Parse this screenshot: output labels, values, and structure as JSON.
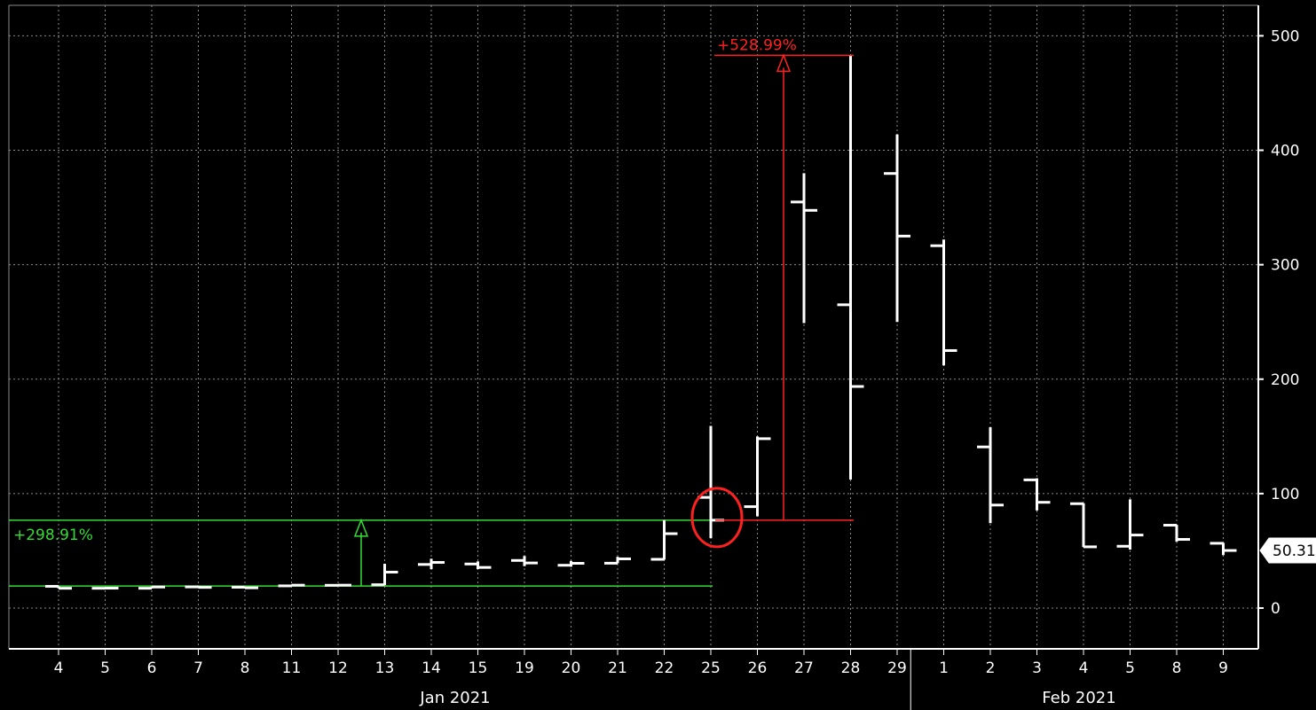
{
  "chart_data": {
    "type": "ohlc",
    "title": "",
    "ylim": [
      -40,
      515
    ],
    "y_ticks": [
      0,
      100,
      200,
      300,
      400,
      500
    ],
    "grid": true,
    "colors": {
      "background": "#000000",
      "bars": "#ffffff",
      "axis": "#ffffff",
      "grid": "#8a8a8a",
      "annotation_up": "#ff2020",
      "annotation_base": "#33dd33",
      "highlight_circle": "#ff2020"
    },
    "x_tick_labels": [
      "4",
      "5",
      "6",
      "7",
      "8",
      "11",
      "12",
      "13",
      "14",
      "15",
      "19",
      "20",
      "21",
      "22",
      "25",
      "26",
      "27",
      "28",
      "29",
      "1",
      "2",
      "3",
      "4",
      "5",
      "8",
      "9"
    ],
    "month_labels": [
      "Jan 2021",
      "Feb 2021"
    ],
    "last_price_label": "50.31",
    "bars": [
      {
        "date": "2021-01-04",
        "open": 19.0,
        "high": 19.1,
        "low": 17.2,
        "close": 17.3
      },
      {
        "date": "2021-01-05",
        "open": 17.3,
        "high": 18.1,
        "low": 17.2,
        "close": 17.4
      },
      {
        "date": "2021-01-06",
        "open": 17.3,
        "high": 18.9,
        "low": 17.1,
        "close": 18.4
      },
      {
        "date": "2021-01-07",
        "open": 18.5,
        "high": 19.5,
        "low": 18.0,
        "close": 18.1
      },
      {
        "date": "2021-01-08",
        "open": 18.2,
        "high": 18.3,
        "low": 17.1,
        "close": 17.7
      },
      {
        "date": "2021-01-11",
        "open": 19.4,
        "high": 20.4,
        "low": 19.0,
        "close": 20.0
      },
      {
        "date": "2021-01-12",
        "open": 19.9,
        "high": 20.4,
        "low": 19.4,
        "close": 20.0
      },
      {
        "date": "2021-01-13",
        "open": 20.4,
        "high": 38.7,
        "low": 20.0,
        "close": 31.4
      },
      {
        "date": "2021-01-14",
        "open": 38.1,
        "high": 43.1,
        "low": 34.0,
        "close": 39.9
      },
      {
        "date": "2021-01-15",
        "open": 38.5,
        "high": 40.8,
        "low": 34.0,
        "close": 35.5
      },
      {
        "date": "2021-01-19",
        "open": 41.6,
        "high": 45.5,
        "low": 36.6,
        "close": 39.4
      },
      {
        "date": "2021-01-20",
        "open": 37.4,
        "high": 41.2,
        "low": 36.1,
        "close": 39.1
      },
      {
        "date": "2021-01-21",
        "open": 39.2,
        "high": 44.8,
        "low": 39.1,
        "close": 43.0
      },
      {
        "date": "2021-01-22",
        "open": 42.6,
        "high": 76.8,
        "low": 42.3,
        "close": 65.0
      },
      {
        "date": "2021-01-25",
        "open": 96.7,
        "high": 159.2,
        "low": 61.1,
        "close": 76.8
      },
      {
        "date": "2021-01-26",
        "open": 88.6,
        "high": 150.0,
        "low": 80.2,
        "close": 148.0
      },
      {
        "date": "2021-01-27",
        "open": 354.8,
        "high": 380.0,
        "low": 249.0,
        "close": 347.5
      },
      {
        "date": "2021-01-28",
        "open": 265.0,
        "high": 483.0,
        "low": 112.3,
        "close": 193.6
      },
      {
        "date": "2021-01-29",
        "open": 379.7,
        "high": 413.9,
        "low": 250.0,
        "close": 325.0
      },
      {
        "date": "2021-02-01",
        "open": 316.6,
        "high": 322.0,
        "low": 212.0,
        "close": 225.0
      },
      {
        "date": "2021-02-02",
        "open": 140.8,
        "high": 158.0,
        "low": 74.2,
        "close": 90.0
      },
      {
        "date": "2021-02-03",
        "open": 112.0,
        "high": 113.4,
        "low": 85.3,
        "close": 92.4
      },
      {
        "date": "2021-02-04",
        "open": 91.2,
        "high": 91.5,
        "low": 53.3,
        "close": 53.5
      },
      {
        "date": "2021-02-05",
        "open": 54.0,
        "high": 95.0,
        "low": 51.1,
        "close": 63.8
      },
      {
        "date": "2021-02-08",
        "open": 72.4,
        "high": 72.7,
        "low": 58.0,
        "close": 60.0
      },
      {
        "date": "2021-02-09",
        "open": 56.6,
        "high": 57.0,
        "low": 46.3,
        "close": 50.3
      }
    ],
    "annotations": [
      {
        "label": "+528.99%",
        "color": "#ff2020",
        "from_value": 76.8,
        "to_value": 483.0
      },
      {
        "label": "+298.91%",
        "color": "#33dd33",
        "from_value": 19.3,
        "to_value": 76.8
      }
    ]
  }
}
